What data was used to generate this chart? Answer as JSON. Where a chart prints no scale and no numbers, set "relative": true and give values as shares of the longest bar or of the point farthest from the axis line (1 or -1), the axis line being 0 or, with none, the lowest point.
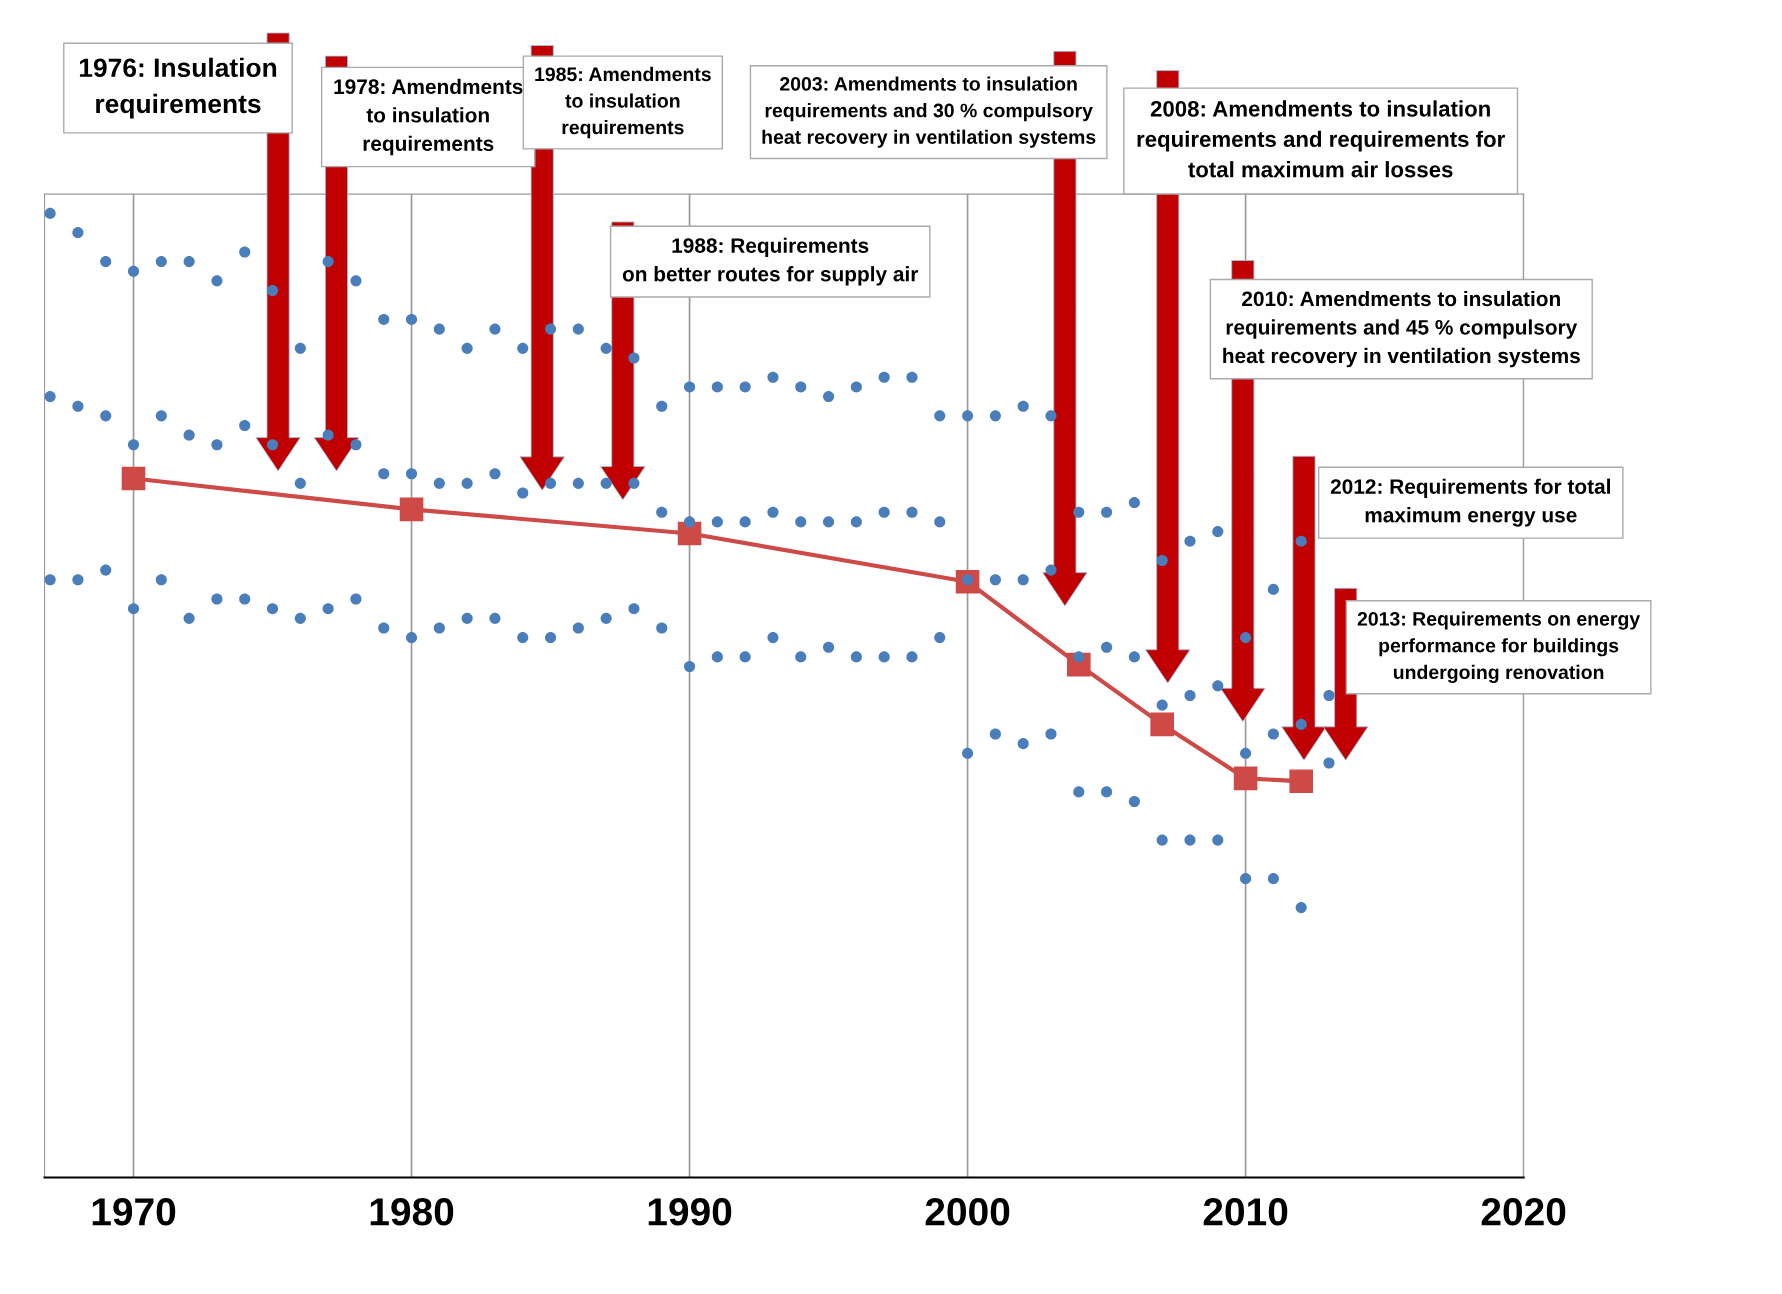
{
  "chart_data": {
    "type": "scatter",
    "relative": true,
    "xlim": [
      1966.8,
      2020
    ],
    "xticks": [
      1970,
      1980,
      1990,
      2000,
      2010,
      2020
    ],
    "grid": "x",
    "tick_labels": "x",
    "series": [
      {
        "marker": "circle",
        "color": "#4a7ebb",
        "x": [
          1967,
          1967,
          1967,
          1968,
          1968,
          1968,
          1969,
          1969,
          1969,
          1970,
          1970,
          1970,
          1971,
          1971,
          1971,
          1972,
          1972,
          1972,
          1973,
          1973,
          1973,
          1974,
          1974,
          1974,
          1975,
          1975,
          1975,
          1976,
          1976,
          1976,
          1977,
          1977,
          1977,
          1978,
          1978,
          1978,
          1979,
          1979,
          1979,
          1980,
          1980,
          1980,
          1981,
          1981,
          1981,
          1982,
          1982,
          1982,
          1983,
          1983,
          1983,
          1984,
          1984,
          1984,
          1985,
          1985,
          1985,
          1986,
          1986,
          1986,
          1987,
          1987,
          1987,
          1988,
          1988,
          1988,
          1989,
          1989,
          1989,
          1990,
          1990,
          1990,
          1991,
          1991,
          1991,
          1992,
          1992,
          1992,
          1993,
          1993,
          1993,
          1994,
          1994,
          1994,
          1995,
          1995,
          1995,
          1996,
          1996,
          1996,
          1997,
          1997,
          1997,
          1998,
          1998,
          1998,
          1999,
          1999,
          1999,
          2000,
          2000,
          2000,
          2001,
          2001,
          2001,
          2002,
          2002,
          2002,
          2003,
          2003,
          2003,
          2004,
          2004,
          2004,
          2005,
          2005,
          2005,
          2006,
          2006,
          2006,
          2007,
          2007,
          2007,
          2008,
          2008,
          2008,
          2009,
          2009,
          2009,
          2010,
          2010,
          2010,
          2011,
          2011,
          2011,
          2012,
          2012,
          2012,
          2013,
          2013
        ],
        "values": [
          1.0,
          0.81,
          0.62,
          0.98,
          0.8,
          0.62,
          0.95,
          0.79,
          0.63,
          0.94,
          0.76,
          0.59,
          0.95,
          0.79,
          0.62,
          0.95,
          0.77,
          0.58,
          0.93,
          0.76,
          0.6,
          0.96,
          0.78,
          0.6,
          0.92,
          0.76,
          0.59,
          0.86,
          0.72,
          0.58,
          0.95,
          0.77,
          0.59,
          0.93,
          0.76,
          0.6,
          0.89,
          0.73,
          0.57,
          0.89,
          0.73,
          0.56,
          0.88,
          0.72,
          0.57,
          0.86,
          0.72,
          0.58,
          0.88,
          0.73,
          0.58,
          0.86,
          0.71,
          0.56,
          0.88,
          0.72,
          0.56,
          0.88,
          0.72,
          0.57,
          0.86,
          0.72,
          0.58,
          0.85,
          0.72,
          0.59,
          0.8,
          0.69,
          0.57,
          0.82,
          0.68,
          0.53,
          0.82,
          0.68,
          0.54,
          0.82,
          0.68,
          0.54,
          0.83,
          0.69,
          0.56,
          0.82,
          0.68,
          0.54,
          0.81,
          0.68,
          0.55,
          0.82,
          0.68,
          0.54,
          0.83,
          0.69,
          0.54,
          0.83,
          0.69,
          0.54,
          0.79,
          0.68,
          0.56,
          0.79,
          0.62,
          0.44,
          0.79,
          0.62,
          0.46,
          0.8,
          0.62,
          0.45,
          0.79,
          0.63,
          0.46,
          0.69,
          0.54,
          0.4,
          0.69,
          0.55,
          0.4,
          0.7,
          0.54,
          0.39,
          0.64,
          0.49,
          0.35,
          0.66,
          0.5,
          0.35,
          0.67,
          0.51,
          0.35,
          0.56,
          0.44,
          0.31,
          0.61,
          0.46,
          0.31,
          0.66,
          0.47,
          0.28,
          0.5,
          0.43
        ]
      },
      {
        "type": "line",
        "marker": "square",
        "line_style": "solid",
        "color": "#cd4a47",
        "x": [
          1970,
          1980,
          1990,
          2000,
          2004,
          2007,
          2010,
          2012
        ],
        "values": [
          0.725,
          0.693,
          0.668,
          0.618,
          0.532,
          0.47,
          0.414,
          0.411
        ]
      }
    ],
    "annotations": [
      "1976: Insulation\nrequirements",
      "1978: Amendments\nto insulation\nrequirements",
      "1985: Amendments\nto insulation\nrequirements",
      "1988: Requirements\non better routes for supply air",
      "2003: Amendments to insulation\nrequirements and 30 % compulsory\nheat recovery in ventilation systems",
      "2008: Amendments to insulation\nrequirements and requirements for\ntotal maximum air losses",
      "2010: Amendments to insulation\nrequirements and 45 % compulsory\nheat recovery in ventilation systems",
      "2012: Requirements for total\nmaximum energy use",
      "2013: Requirements on energy\nperformance for buildings\nundergoing renovation"
    ]
  }
}
